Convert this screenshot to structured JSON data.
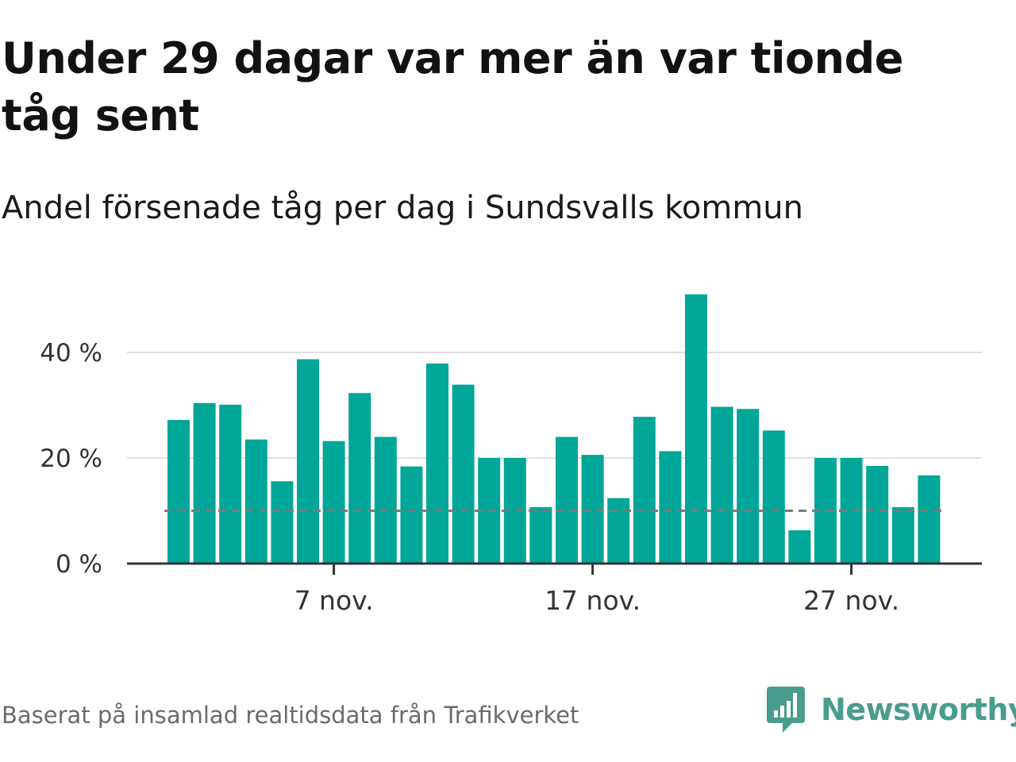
{
  "title": "Under 29 dagar var mer än var tionde tåg sent",
  "subtitle": "Andel försenade tåg per dag i Sundsvalls kommun",
  "footer": "Baserat på insamlad realtidsdata från Trafikverket",
  "logo": {
    "text": "Newsworthy",
    "icon": "newsworthy-logo-icon",
    "color": "#4a9c8c"
  },
  "chart_data": {
    "type": "bar",
    "x": [
      "2019-11-01",
      "2019-11-02",
      "2019-11-03",
      "2019-11-04",
      "2019-11-05",
      "2019-11-06",
      "2019-11-07",
      "2019-11-08",
      "2019-11-09",
      "2019-11-10",
      "2019-11-11",
      "2019-11-12",
      "2019-11-13",
      "2019-11-14",
      "2019-11-15",
      "2019-11-16",
      "2019-11-17",
      "2019-11-18",
      "2019-11-19",
      "2019-11-20",
      "2019-11-21",
      "2019-11-22",
      "2019-11-23",
      "2019-11-24",
      "2019-11-25",
      "2019-11-26",
      "2019-11-27",
      "2019-11-28",
      "2019-11-29",
      "2019-11-30"
    ],
    "values": [
      27.2,
      30.4,
      30.1,
      23.5,
      15.6,
      38.7,
      23.2,
      32.3,
      24.0,
      18.4,
      37.9,
      33.9,
      20.0,
      20.0,
      10.7,
      24.0,
      20.6,
      12.4,
      27.8,
      21.3,
      51.0,
      29.7,
      29.3,
      25.2,
      6.3,
      20.0,
      20.0,
      18.5,
      10.7,
      16.7
    ],
    "y_ticks": [
      0,
      20,
      40
    ],
    "y_tick_labels": [
      "0 %",
      "20 %",
      "40 %"
    ],
    "ylim": [
      0,
      52
    ],
    "x_ticks": [
      "2019-11-07",
      "2019-11-17",
      "2019-11-27"
    ],
    "x_tick_labels": [
      "7 nov.",
      "17 nov.",
      "27 nov."
    ],
    "reference_line": 10,
    "grid": true,
    "bar_color": "#00a698",
    "gridline_color": "#e0e0e0",
    "reference_line_color": "#7a7a7a",
    "title": "Under 29 dagar var mer än var tionde tåg sent",
    "subtitle": "Andel försenade tåg per dag i Sundsvalls kommun",
    "xlabel": "",
    "ylabel": ""
  }
}
